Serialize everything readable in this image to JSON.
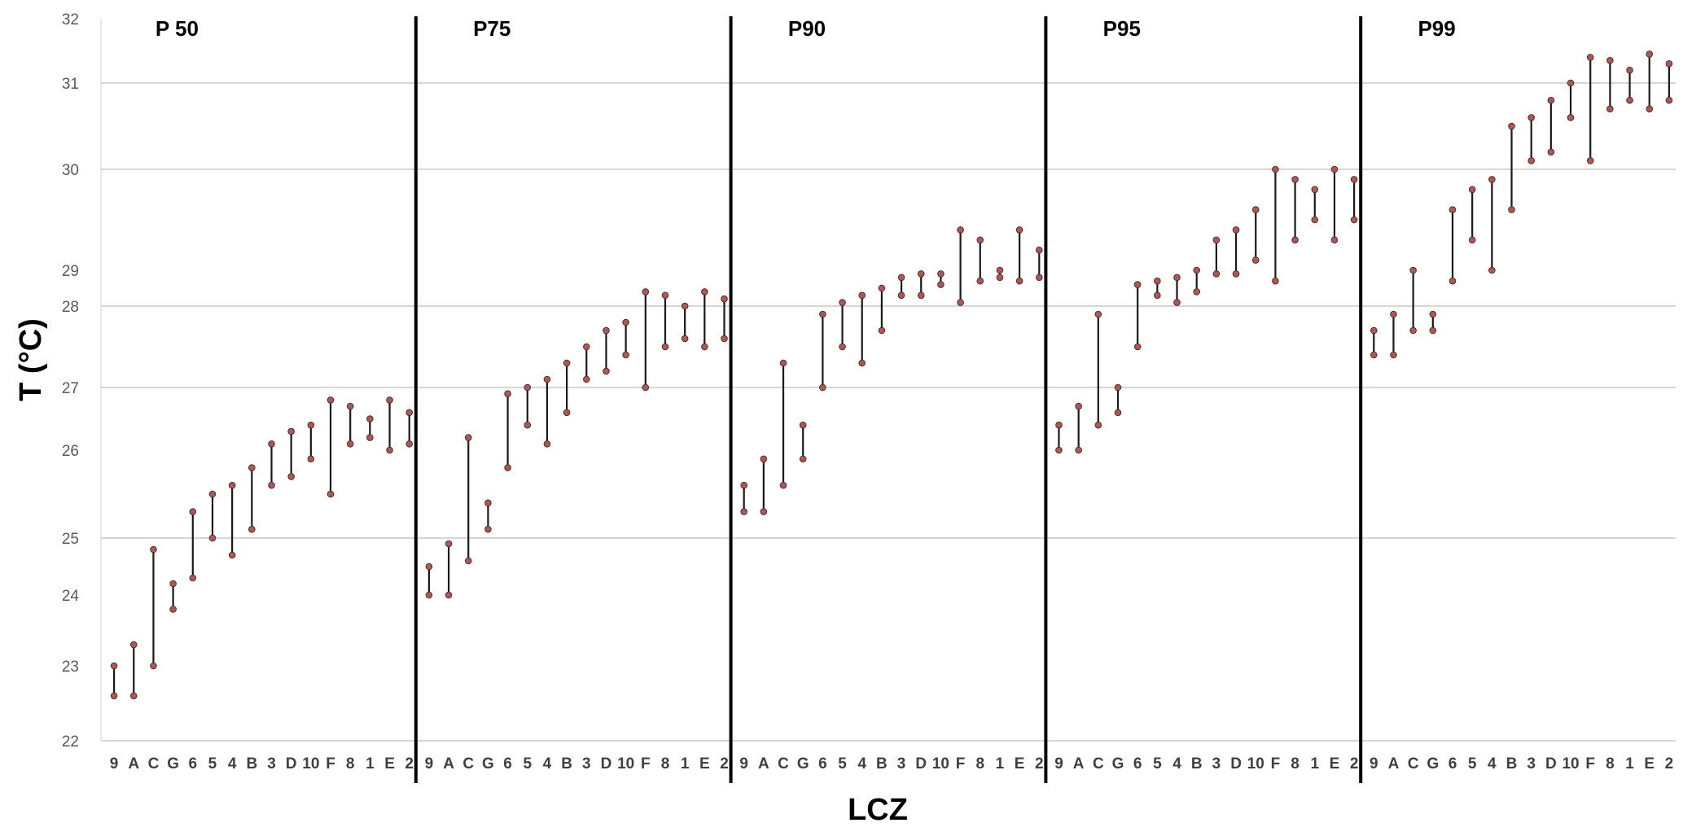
{
  "chart_data": {
    "type": "range",
    "xlabel": "LCZ",
    "ylabel": "T (°C)",
    "y_tick_labels": [
      "22",
      "23",
      "24",
      "25",
      "26",
      "27",
      "28",
      "29",
      "30",
      "31",
      "32"
    ],
    "ylim": [
      22,
      32
    ],
    "grid": true,
    "categories": [
      "9",
      "A",
      "C",
      "G",
      "6",
      "5",
      "4",
      "B",
      "3",
      "D",
      "10",
      "F",
      "8",
      "1",
      "E",
      "2"
    ],
    "colors": {
      "range_line": "#1a1a1a",
      "marker": "#a85a5a",
      "grid": "#c8c8c8",
      "divider": "#000000"
    },
    "panels": [
      {
        "title": "P 50",
        "ranges": [
          [
            22.6,
            23.0
          ],
          [
            22.6,
            23.3
          ],
          [
            23.0,
            24.8
          ],
          [
            23.8,
            24.2
          ],
          [
            24.3,
            25.3
          ],
          [
            25.0,
            25.5
          ],
          [
            24.7,
            25.6
          ],
          [
            25.1,
            25.8
          ],
          [
            25.6,
            26.1
          ],
          [
            25.7,
            26.3
          ],
          [
            25.9,
            26.4
          ],
          [
            25.5,
            26.8
          ],
          [
            26.1,
            26.7
          ],
          [
            26.2,
            26.5
          ],
          [
            26.0,
            26.8
          ],
          [
            26.1,
            26.6
          ]
        ]
      },
      {
        "title": "P75",
        "ranges": [
          [
            24.0,
            24.5
          ],
          [
            24.0,
            24.9
          ],
          [
            24.6,
            26.2
          ],
          [
            25.1,
            25.4
          ],
          [
            25.8,
            26.9
          ],
          [
            26.4,
            27.0
          ],
          [
            26.1,
            27.1
          ],
          [
            26.6,
            27.3
          ],
          [
            27.1,
            27.5
          ],
          [
            27.2,
            27.7
          ],
          [
            27.4,
            27.8
          ],
          [
            27.0,
            28.4
          ],
          [
            27.5,
            28.3
          ],
          [
            27.6,
            28.0
          ],
          [
            27.5,
            28.4
          ],
          [
            27.6,
            28.2
          ]
        ]
      },
      {
        "title": "P90",
        "ranges": [
          [
            25.3,
            25.6
          ],
          [
            25.3,
            25.9
          ],
          [
            25.6,
            27.3
          ],
          [
            25.9,
            26.4
          ],
          [
            27.0,
            27.9
          ],
          [
            27.5,
            28.1
          ],
          [
            27.3,
            28.3
          ],
          [
            27.7,
            28.5
          ],
          [
            28.3,
            28.8
          ],
          [
            28.3,
            28.9
          ],
          [
            28.6,
            28.9
          ],
          [
            28.1,
            29.4
          ],
          [
            28.7,
            29.3
          ],
          [
            28.8,
            29.0
          ],
          [
            28.7,
            29.4
          ],
          [
            28.8,
            29.2
          ]
        ]
      },
      {
        "title": "P95",
        "ranges": [
          [
            26.0,
            26.4
          ],
          [
            26.0,
            26.7
          ],
          [
            26.4,
            27.9
          ],
          [
            26.6,
            27.0
          ],
          [
            27.5,
            28.6
          ],
          [
            28.3,
            28.7
          ],
          [
            28.1,
            28.8
          ],
          [
            28.4,
            29.0
          ],
          [
            28.9,
            29.3
          ],
          [
            28.9,
            29.4
          ],
          [
            29.1,
            29.6
          ],
          [
            28.7,
            30.0
          ],
          [
            29.3,
            29.9
          ],
          [
            29.5,
            29.8
          ],
          [
            29.3,
            30.0
          ],
          [
            29.5,
            29.9
          ]
        ]
      },
      {
        "title": "P99",
        "ranges": [
          [
            27.4,
            27.7
          ],
          [
            27.4,
            27.9
          ],
          [
            27.7,
            29.0
          ],
          [
            27.7,
            27.9
          ],
          [
            28.7,
            29.6
          ],
          [
            29.3,
            29.8
          ],
          [
            29.0,
            29.9
          ],
          [
            29.6,
            30.5
          ],
          [
            30.1,
            30.6
          ],
          [
            30.2,
            30.8
          ],
          [
            30.6,
            31.0
          ],
          [
            30.1,
            31.4
          ],
          [
            30.7,
            31.35
          ],
          [
            30.8,
            31.2
          ],
          [
            30.7,
            31.45
          ],
          [
            30.8,
            31.3
          ]
        ]
      }
    ]
  }
}
